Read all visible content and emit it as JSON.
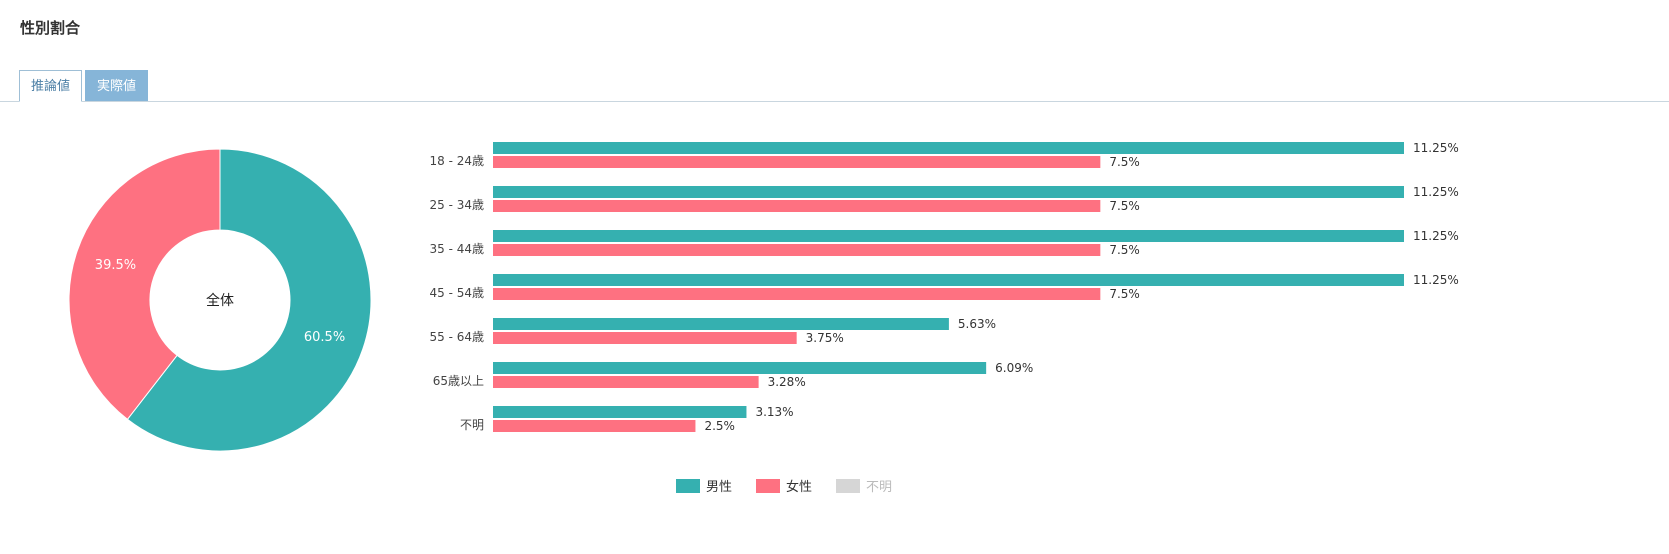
{
  "section_title": "性別割合",
  "tabs": [
    {
      "label": "推論値",
      "active": true
    },
    {
      "label": "実際値",
      "active": false
    }
  ],
  "colors": {
    "male": "#35b0b0",
    "female": "#fe7181",
    "unknown": "#d6d6d6"
  },
  "chart_data": [
    {
      "type": "pie",
      "variant": "donut",
      "center_label": "全体",
      "slices": [
        {
          "name": "男性",
          "value": 60.5,
          "label": "60.5%"
        },
        {
          "name": "女性",
          "value": 39.5,
          "label": "39.5%"
        }
      ]
    },
    {
      "type": "bar",
      "orientation": "horizontal",
      "categories": [
        "18 - 24歳",
        "25 - 34歳",
        "35 - 44歳",
        "45 - 54歳",
        "55 - 64歳",
        "65歳以上",
        "不明"
      ],
      "series": [
        {
          "name": "男性",
          "values": [
            11.25,
            11.25,
            11.25,
            11.25,
            5.63,
            6.09,
            3.13
          ],
          "labels": [
            "11.25%",
            "11.25%",
            "11.25%",
            "11.25%",
            "5.63%",
            "6.09%",
            "3.13%"
          ]
        },
        {
          "name": "女性",
          "values": [
            7.5,
            7.5,
            7.5,
            7.5,
            3.75,
            3.28,
            2.5
          ],
          "labels": [
            "7.5%",
            "7.5%",
            "7.5%",
            "7.5%",
            "3.75%",
            "3.28%",
            "2.5%"
          ]
        }
      ],
      "xlim": [
        0,
        11.25
      ]
    }
  ],
  "legend": [
    {
      "label": "男性",
      "series": "male",
      "active": true
    },
    {
      "label": "女性",
      "series": "female",
      "active": true
    },
    {
      "label": "不明",
      "series": "unknown",
      "active": false
    }
  ]
}
